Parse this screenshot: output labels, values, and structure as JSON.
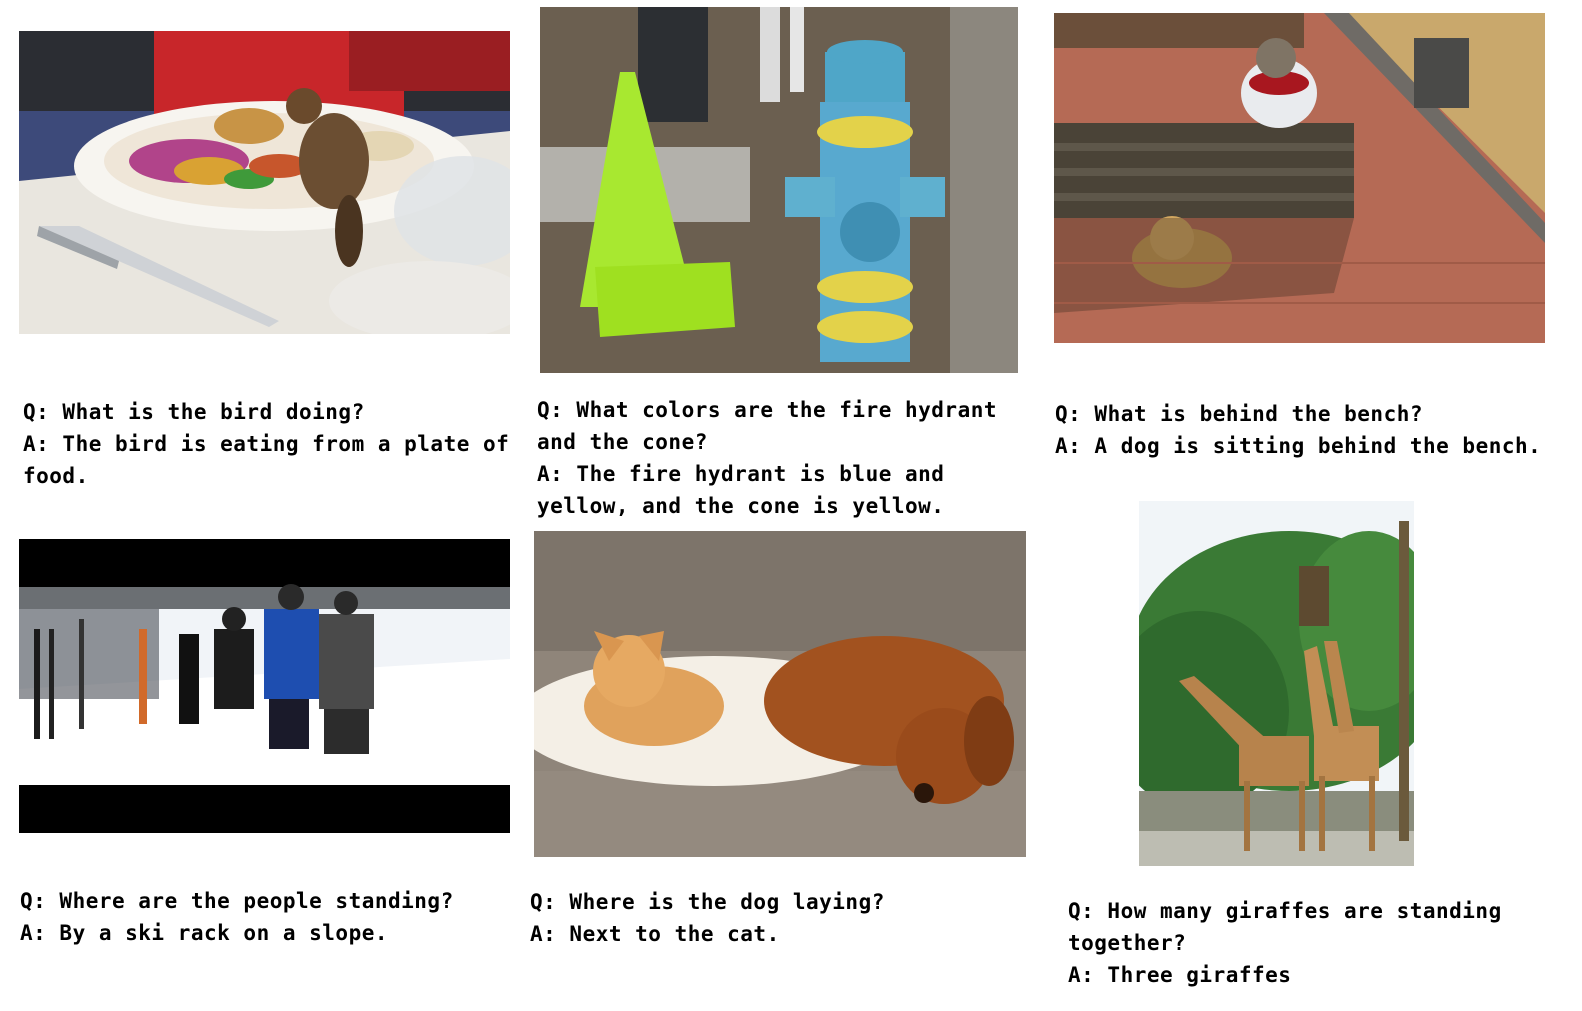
{
  "items": [
    {
      "image_label": "bird on plate of food",
      "question": "Q: What is the bird doing?",
      "answer": "A: The bird is eating from a plate of food."
    },
    {
      "image_label": "fire hydrant and cone",
      "question": "Q: What colors are the fire hydrant and the cone?",
      "answer": "A: The fire hydrant is blue and yellow, and the cone is yellow."
    },
    {
      "image_label": "dog behind bench",
      "question": "Q: What is behind the bench?",
      "answer": "A: A dog is sitting behind the bench."
    },
    {
      "image_label": "skiers by ski rack",
      "question": "Q: Where are the people standing?",
      "answer": "A: By a ski rack on a slope."
    },
    {
      "image_label": "cat and dog on couch",
      "question": "Q: Where is the dog laying?",
      "answer": "A: Next to the cat."
    },
    {
      "image_label": "giraffes standing together",
      "question": "Q: How many giraffes are standing together?",
      "answer": "A: Three giraffes"
    }
  ]
}
